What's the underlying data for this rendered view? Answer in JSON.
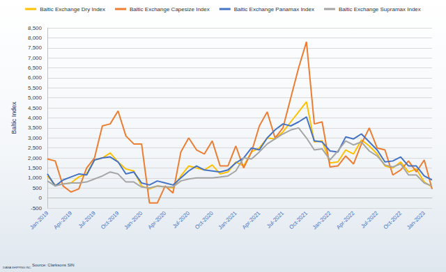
{
  "chart_data": {
    "type": "line",
    "y_label": "Baltic Index",
    "source": "Source: Clarksons SIN",
    "logo_text": "DIANA SHIPPING INC.",
    "categories": [
      "Jan-2019",
      null,
      null,
      "Apr-2019",
      null,
      null,
      "Jul-2019",
      null,
      null,
      "Oct-2019",
      null,
      null,
      "Jan-2020",
      null,
      null,
      "Apr-2020",
      null,
      null,
      "Jul-2020",
      null,
      null,
      "Oct-2020",
      null,
      null,
      "Jan-2021",
      null,
      null,
      "Apr-2021",
      null,
      null,
      "Jul-2021",
      null,
      null,
      "Oct-2021",
      null,
      null,
      "Jan-2022",
      null,
      null,
      "Apr-2022",
      null,
      null,
      "Jul-2022",
      null,
      null,
      "Oct-2022",
      null,
      null,
      "Jan-2023",
      null
    ],
    "series": [
      {
        "name": "Baltic Exchange Dry Index",
        "color": "#ffc000",
        "values": [
          1100,
          650,
          700,
          750,
          1050,
          1200,
          1900,
          2000,
          2250,
          1800,
          1450,
          1350,
          600,
          450,
          600,
          550,
          500,
          1100,
          1600,
          1500,
          1400,
          1650,
          1200,
          1300,
          1800,
          1600,
          2300,
          2500,
          3000,
          2950,
          3300,
          3800,
          4300,
          4800,
          2800,
          2850,
          1750,
          1800,
          2400,
          2200,
          2900,
          2600,
          2200,
          1600,
          1500,
          1800,
          1300,
          1450,
          800,
          550
        ]
      },
      {
        "name": "Baltic Exchange Capesize Index",
        "color": "#ed7d31",
        "values": [
          1950,
          1850,
          600,
          300,
          450,
          1500,
          2000,
          3600,
          3700,
          4350,
          3100,
          2700,
          2700,
          -250,
          -250,
          600,
          250,
          2300,
          3000,
          2400,
          2200,
          2850,
          1600,
          1600,
          2600,
          1500,
          2300,
          3600,
          4300,
          3000,
          3500,
          5000,
          6500,
          7800,
          3700,
          3800,
          1550,
          1600,
          2100,
          1700,
          2700,
          3500,
          2500,
          2400,
          1150,
          1400,
          1850,
          1300,
          1900,
          450
        ]
      },
      {
        "name": "Baltic Exchange Panamax Index",
        "color": "#4472c4",
        "values": [
          1200,
          600,
          900,
          1050,
          1200,
          1150,
          1900,
          2000,
          2050,
          1800,
          1200,
          1300,
          750,
          650,
          850,
          750,
          650,
          1000,
          1350,
          1600,
          1400,
          1350,
          1300,
          1400,
          1750,
          2000,
          2500,
          2400,
          3000,
          3400,
          3700,
          3600,
          3800,
          4050,
          2850,
          2800,
          2350,
          2300,
          3050,
          2950,
          3200,
          2800,
          2400,
          1800,
          1850,
          2050,
          1600,
          1600,
          1100,
          900
        ]
      },
      {
        "name": "Baltic Exchange Supramax Index",
        "color": "#a5a5a5",
        "values": [
          850,
          600,
          700,
          750,
          750,
          800,
          950,
          1100,
          1300,
          1200,
          800,
          800,
          550,
          500,
          600,
          550,
          550,
          850,
          950,
          1000,
          1000,
          1000,
          1050,
          1100,
          1350,
          2000,
          1950,
          2300,
          2700,
          2950,
          3200,
          3400,
          3500,
          3000,
          2400,
          2450,
          1900,
          2350,
          2850,
          2650,
          2800,
          2350,
          2100,
          1650,
          1550,
          1700,
          1150,
          1150,
          750,
          600
        ]
      }
    ],
    "ylim": [
      -500,
      8500
    ],
    "yticks": [
      -500,
      0,
      500,
      {
        "value": 1000,
        "label": "1,000"
      },
      {
        "value": 1500,
        "label": "1,500"
      },
      {
        "value": 2000,
        "label": "2,000"
      },
      {
        "value": 2500,
        "label": "2,500"
      },
      {
        "value": 3000,
        "label": "3,000"
      },
      {
        "value": 3500,
        "label": "3,500"
      },
      {
        "value": 4000,
        "label": "4,000"
      },
      {
        "value": 4500,
        "label": "4,500"
      },
      {
        "value": 5000,
        "label": "5,000"
      },
      {
        "value": 5500,
        "label": "5,500"
      },
      {
        "value": 6000,
        "label": "6,000"
      },
      {
        "value": 6500,
        "label": "6,500"
      },
      {
        "value": 7000,
        "label": "7,000"
      },
      {
        "value": 7500,
        "label": "7,500"
      },
      {
        "value": 8000,
        "label": "8,000"
      },
      {
        "value": 8500,
        "label": "8,500"
      }
    ],
    "grid": true,
    "legend": "top"
  }
}
